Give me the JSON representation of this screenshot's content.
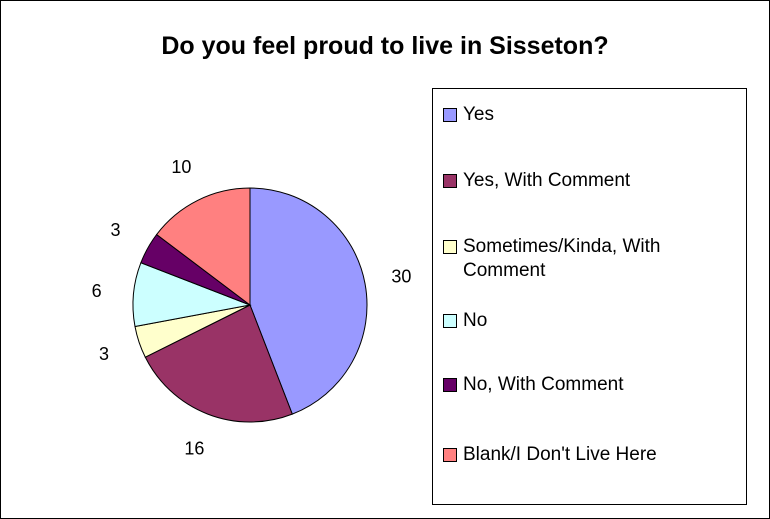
{
  "chart_data": {
    "type": "pie",
    "title": "Do you feel proud to live in Sisseton?",
    "categories": [
      "Yes",
      "Yes, With Comment",
      "Sometimes/Kinda, With Comment",
      "No",
      "No, With Comment",
      "Blank/I Don't Live Here"
    ],
    "values": [
      30,
      16,
      3,
      6,
      3,
      10
    ],
    "colors": [
      "#9999FF",
      "#993366",
      "#FFFFCC",
      "#CCFFFF",
      "#660066",
      "#FF8080"
    ],
    "legend_position": "right",
    "start": "12 o'clock, clockwise"
  },
  "legend": {
    "items": [
      {
        "label": "Yes",
        "color": "#9999FF"
      },
      {
        "label": "Yes, With Comment",
        "color": "#993366"
      },
      {
        "label": "Sometimes/Kinda, With Comment",
        "color": "#FFFFCC"
      },
      {
        "label": "No",
        "color": "#CCFFFF"
      },
      {
        "label": "No, With Comment",
        "color": "#660066"
      },
      {
        "label": "Blank/I Don't Live Here",
        "color": "#FF8080"
      }
    ]
  }
}
